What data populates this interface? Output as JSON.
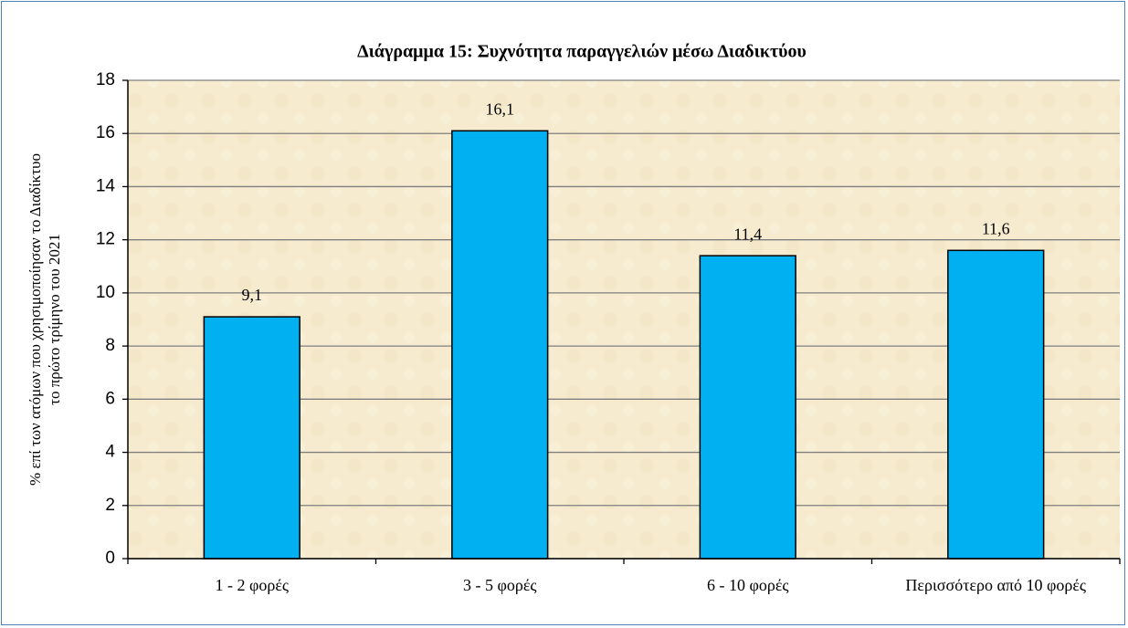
{
  "chart_data": {
    "type": "bar",
    "title": "Διάγραμμα 15: Συχνότητα παραγγελιών μέσω Διαδικτύου",
    "ylabel": [
      "% επί των ατόμων που χρησιμοποίησαν το Διαδίκτυο",
      "το πρώτο τρίμηνο του 2021"
    ],
    "categories": [
      "1 - 2 φορές",
      "3 - 5 φορές",
      "6 - 10 φορές",
      "Περισσότερο από 10 φορές"
    ],
    "values": [
      9.1,
      16.1,
      11.4,
      11.6
    ],
    "value_labels": [
      "9,1",
      "16,1",
      "11,4",
      "11,6"
    ],
    "color": "#00b0f0",
    "ylim": [
      0,
      18
    ],
    "yticks": [
      0,
      2,
      4,
      6,
      8,
      10,
      12,
      14,
      16,
      18
    ],
    "grid": true
  }
}
